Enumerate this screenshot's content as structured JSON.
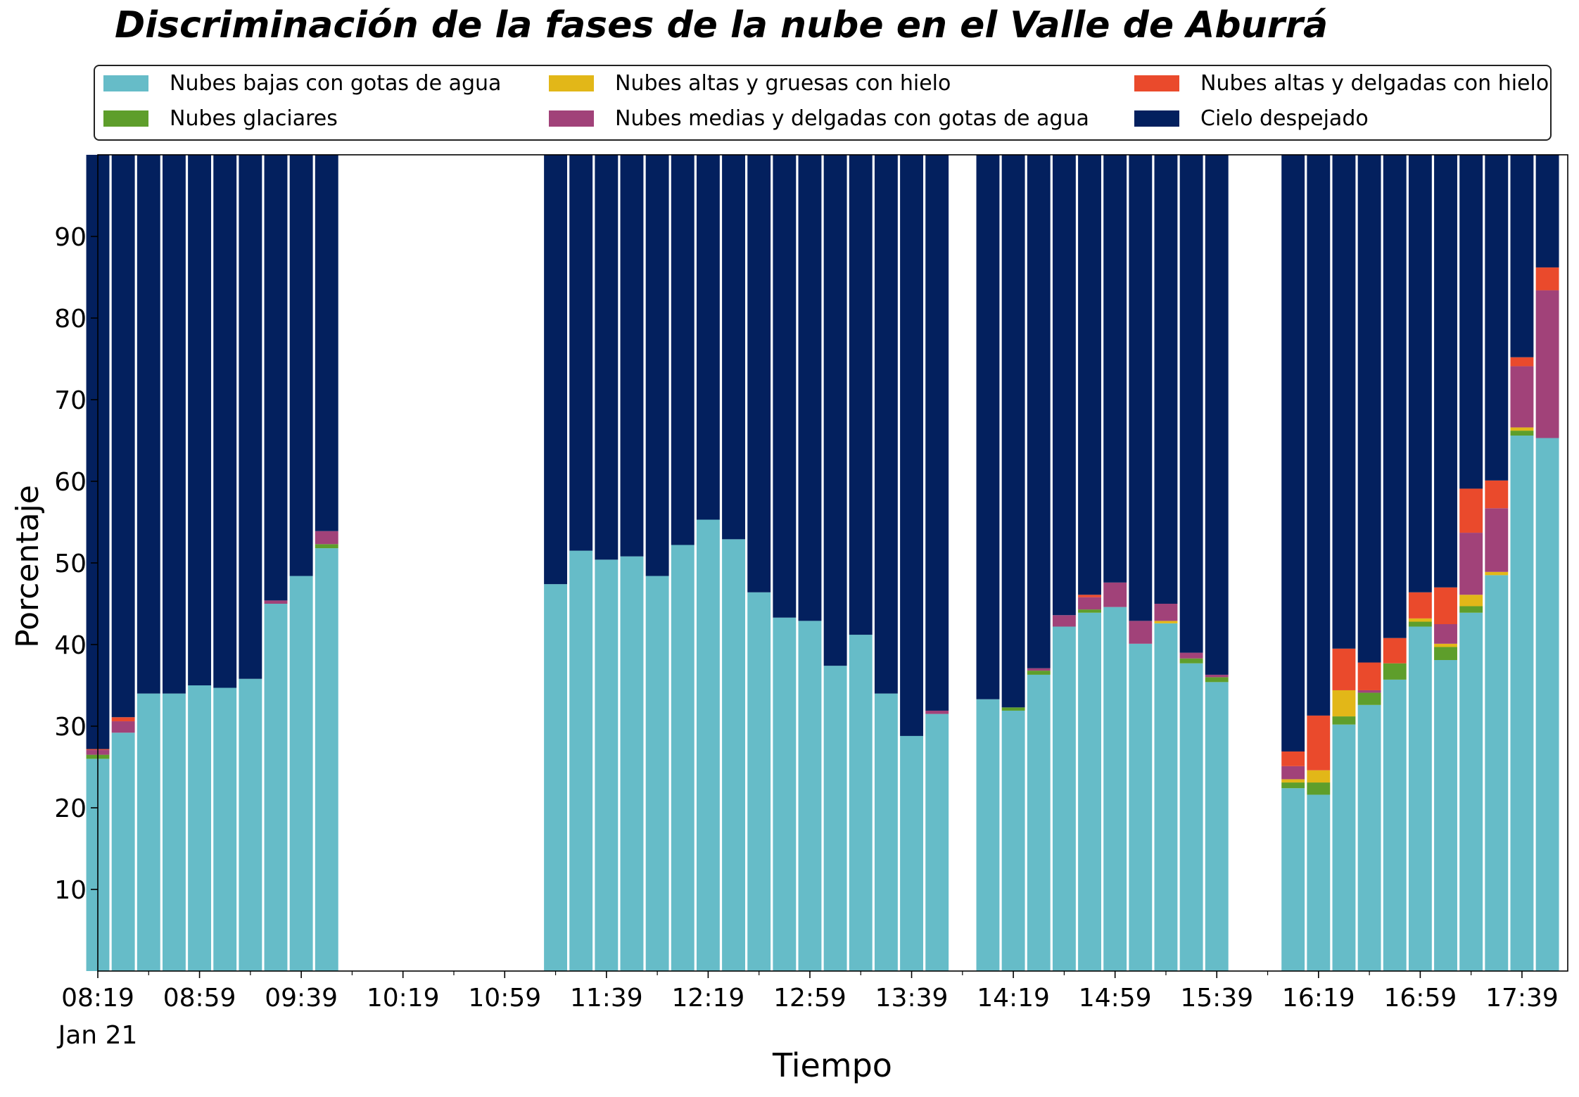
{
  "title": "Discriminación de la fases de la nube en el Valle de Aburrá",
  "legend": [
    {
      "label": "Nubes bajas con gotas de agua",
      "color": "#66bcc8"
    },
    {
      "label": "Nubes altas y gruesas con hielo",
      "color": "#e2b718"
    },
    {
      "label": "Nubes altas y delgadas con hielo",
      "color": "#ea4a2c"
    },
    {
      "label": "Nubes glaciares",
      "color": "#5e9e2b"
    },
    {
      "label": "Nubes medias y delgadas con gotas de agua",
      "color": "#a14279"
    },
    {
      "label": "Cielo despejado",
      "color": "#03205e"
    }
  ],
  "chart_data": {
    "type": "bar",
    "stacked": true,
    "title": "Discriminación de la fases de la nube en el Valle de Aburrá",
    "xlabel": "Tiempo",
    "ylabel": "Porcentaje",
    "ylim": [
      0,
      100
    ],
    "yticks": [
      10,
      20,
      30,
      40,
      50,
      60,
      70,
      80,
      90
    ],
    "x_start_minutes": 499,
    "x_end_minutes": 1077,
    "xticks": [
      {
        "time": "08:19",
        "sub": "Jan 21"
      },
      {
        "time": "08:59"
      },
      {
        "time": "09:39"
      },
      {
        "time": "10:19"
      },
      {
        "time": "10:59"
      },
      {
        "time": "11:39"
      },
      {
        "time": "12:19"
      },
      {
        "time": "12:59"
      },
      {
        "time": "13:39"
      },
      {
        "time": "14:19"
      },
      {
        "time": "14:59"
      },
      {
        "time": "15:39"
      },
      {
        "time": "16:19"
      },
      {
        "time": "16:59"
      },
      {
        "time": "17:39"
      }
    ],
    "legend_position": "top",
    "series": [
      {
        "name": "Nubes bajas con gotas de agua",
        "color": "#66bcc8"
      },
      {
        "name": "Nubes glaciares",
        "color": "#5e9e2b"
      },
      {
        "name": "Nubes altas y gruesas con hielo",
        "color": "#e2b718"
      },
      {
        "name": "Nubes medias y delgadas con gotas de agua",
        "color": "#a14279"
      },
      {
        "name": "Nubes altas y delgadas con hielo",
        "color": "#ea4a2c"
      },
      {
        "name": "Cielo despejado",
        "color": "#03205e"
      }
    ],
    "bars": [
      {
        "time": "08:19",
        "values": [
          26.0,
          0.5,
          0,
          0.6,
          0.1,
          72.8
        ]
      },
      {
        "time": "08:29",
        "values": [
          29.2,
          0,
          0,
          1.4,
          0.5,
          68.9
        ]
      },
      {
        "time": "08:39",
        "values": [
          34.0,
          0,
          0,
          0,
          0,
          66.0
        ]
      },
      {
        "time": "08:49",
        "values": [
          34.0,
          0,
          0,
          0,
          0,
          66.0
        ]
      },
      {
        "time": "08:59",
        "values": [
          35.0,
          0,
          0,
          0,
          0,
          65.0
        ]
      },
      {
        "time": "09:09",
        "values": [
          34.7,
          0,
          0,
          0,
          0,
          65.3
        ]
      },
      {
        "time": "09:19",
        "values": [
          35.8,
          0,
          0,
          0,
          0,
          64.2
        ]
      },
      {
        "time": "09:29",
        "values": [
          45.0,
          0,
          0,
          0.4,
          0,
          54.6
        ]
      },
      {
        "time": "09:39",
        "values": [
          48.4,
          0,
          0,
          0,
          0,
          51.6
        ]
      },
      {
        "time": "09:49",
        "values": [
          51.8,
          0.5,
          0,
          1.6,
          0,
          46.1
        ]
      },
      {
        "time": "11:19",
        "values": [
          47.4,
          0,
          0,
          0,
          0,
          52.6
        ]
      },
      {
        "time": "11:29",
        "values": [
          51.5,
          0,
          0,
          0,
          0,
          48.5
        ]
      },
      {
        "time": "11:39",
        "values": [
          50.4,
          0,
          0,
          0,
          0,
          49.6
        ]
      },
      {
        "time": "11:49",
        "values": [
          50.8,
          0,
          0,
          0,
          0,
          49.2
        ]
      },
      {
        "time": "11:59",
        "values": [
          48.4,
          0,
          0,
          0,
          0,
          51.6
        ]
      },
      {
        "time": "12:09",
        "values": [
          52.2,
          0,
          0,
          0,
          0,
          47.8
        ]
      },
      {
        "time": "12:19",
        "values": [
          55.3,
          0,
          0,
          0,
          0,
          44.7
        ]
      },
      {
        "time": "12:29",
        "values": [
          52.9,
          0,
          0,
          0,
          0,
          47.1
        ]
      },
      {
        "time": "12:39",
        "values": [
          46.4,
          0,
          0,
          0,
          0,
          53.6
        ]
      },
      {
        "time": "12:49",
        "values": [
          43.3,
          0,
          0,
          0,
          0,
          56.7
        ]
      },
      {
        "time": "12:59",
        "values": [
          42.9,
          0,
          0,
          0,
          0,
          57.1
        ]
      },
      {
        "time": "13:09",
        "values": [
          37.4,
          0,
          0,
          0,
          0,
          62.6
        ]
      },
      {
        "time": "13:19",
        "values": [
          41.2,
          0,
          0,
          0,
          0,
          58.8
        ]
      },
      {
        "time": "13:29",
        "values": [
          34.0,
          0,
          0,
          0,
          0,
          66.0
        ]
      },
      {
        "time": "13:39",
        "values": [
          28.8,
          0,
          0,
          0,
          0,
          71.2
        ]
      },
      {
        "time": "13:49",
        "values": [
          31.5,
          0,
          0,
          0.4,
          0,
          68.1
        ]
      },
      {
        "time": "14:09",
        "values": [
          33.3,
          0,
          0,
          0,
          0,
          66.7
        ]
      },
      {
        "time": "14:19",
        "values": [
          31.9,
          0.4,
          0,
          0,
          0,
          67.7
        ]
      },
      {
        "time": "14:29",
        "values": [
          36.3,
          0.5,
          0,
          0.3,
          0,
          62.9
        ]
      },
      {
        "time": "14:39",
        "values": [
          42.2,
          0,
          0,
          1.4,
          0,
          56.4
        ]
      },
      {
        "time": "14:49",
        "values": [
          43.9,
          0.4,
          0,
          1.5,
          0.3,
          53.9
        ]
      },
      {
        "time": "14:59",
        "values": [
          44.6,
          0,
          0,
          3.0,
          0,
          52.4
        ]
      },
      {
        "time": "15:09",
        "values": [
          40.1,
          0,
          0,
          2.8,
          0,
          57.1
        ]
      },
      {
        "time": "15:19",
        "values": [
          42.6,
          0,
          0.3,
          2.1,
          0,
          55.0
        ]
      },
      {
        "time": "15:29",
        "values": [
          37.7,
          0.6,
          0,
          0.7,
          0,
          61.0
        ]
      },
      {
        "time": "15:39",
        "values": [
          35.4,
          0.6,
          0,
          0.3,
          0,
          63.7
        ]
      },
      {
        "time": "16:09",
        "values": [
          22.4,
          0.7,
          0.4,
          1.6,
          1.8,
          73.1
        ]
      },
      {
        "time": "16:19",
        "values": [
          21.6,
          1.5,
          1.5,
          0,
          6.7,
          68.7
        ]
      },
      {
        "time": "16:29",
        "values": [
          30.2,
          1.0,
          3.2,
          0,
          5.1,
          60.5
        ]
      },
      {
        "time": "16:39",
        "values": [
          32.6,
          1.5,
          0,
          0.3,
          3.4,
          62.2
        ]
      },
      {
        "time": "16:49",
        "values": [
          35.7,
          2.0,
          0,
          0,
          3.1,
          59.2
        ]
      },
      {
        "time": "16:59",
        "values": [
          42.2,
          0.6,
          0.4,
          0,
          3.2,
          53.6
        ]
      },
      {
        "time": "17:09",
        "values": [
          38.1,
          1.6,
          0.4,
          2.4,
          4.5,
          53.0
        ]
      },
      {
        "time": "17:19",
        "values": [
          43.9,
          0.8,
          1.4,
          7.6,
          5.4,
          40.9
        ]
      },
      {
        "time": "17:29",
        "values": [
          48.5,
          0,
          0.4,
          7.8,
          3.4,
          39.9
        ]
      },
      {
        "time": "17:39",
        "values": [
          65.6,
          0.6,
          0.4,
          7.5,
          1.1,
          24.8
        ]
      },
      {
        "time": "17:49",
        "values": [
          65.3,
          0,
          0,
          18.1,
          2.8,
          13.8
        ]
      }
    ]
  }
}
